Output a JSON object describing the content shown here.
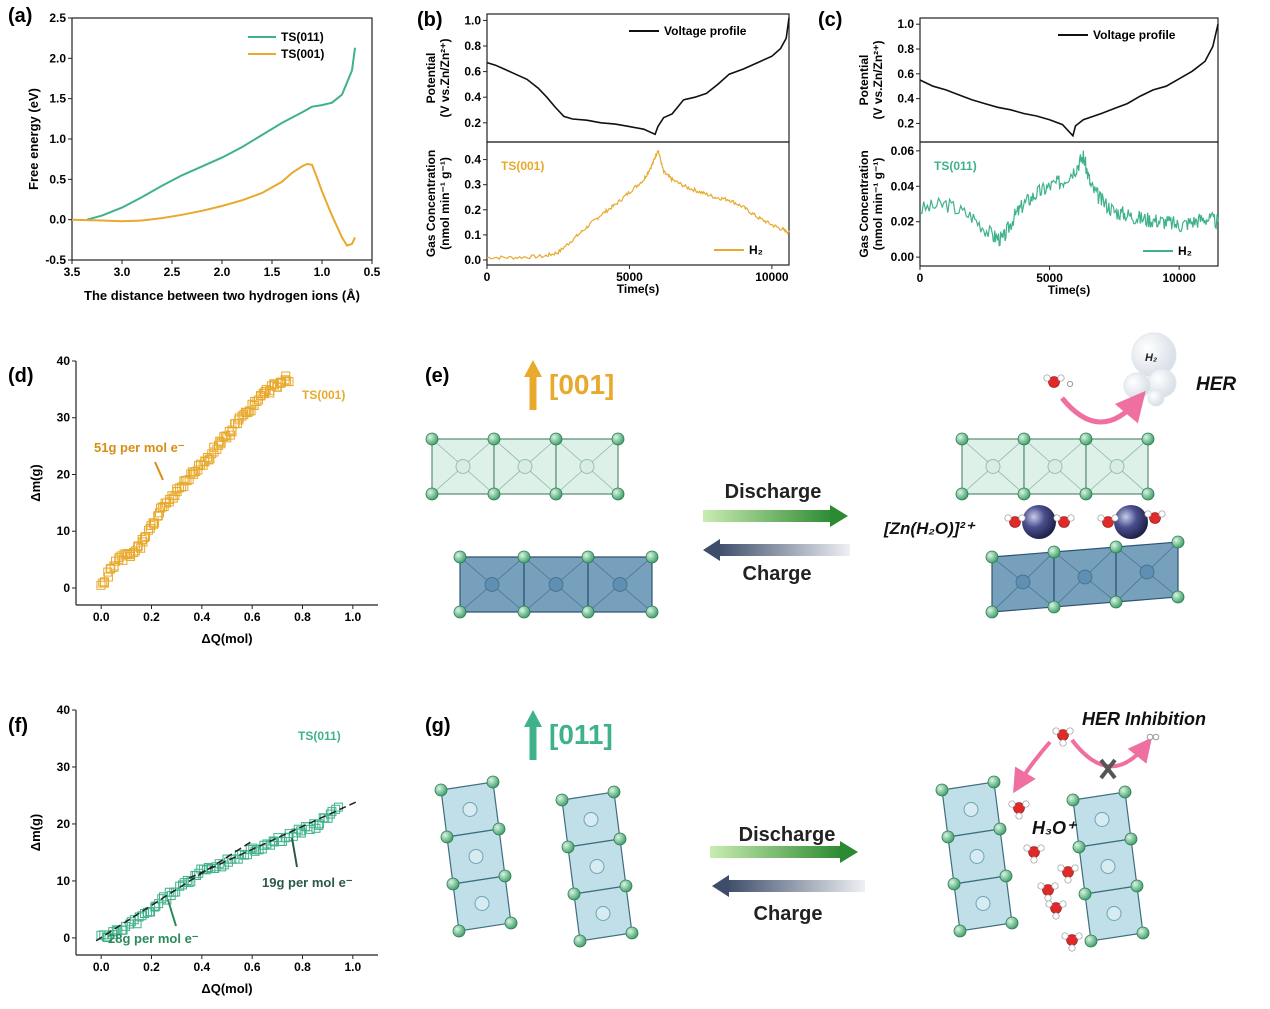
{
  "colors": {
    "green": "#3fb28a",
    "orange": "#e8a92c",
    "black": "#111111",
    "blue": "#4a7fa3",
    "lightblue": "#b9dbe6",
    "pink": "#ee6fa0"
  },
  "panels": {
    "a": {
      "label": "(a)"
    },
    "b": {
      "label": "(b)"
    },
    "c": {
      "label": "(c)"
    },
    "d": {
      "label": "(d)"
    },
    "e": {
      "label": "(e)"
    },
    "f": {
      "label": "(f)"
    },
    "g": {
      "label": "(g)"
    }
  },
  "chart_data": [
    {
      "id": "a",
      "type": "line",
      "xlabel": "The distance between two hydrogen ions (Å)",
      "ylabel": "Free energy (eV)",
      "xlim": [
        3.5,
        0.5
      ],
      "ylim": [
        -0.5,
        2.5
      ],
      "xticks": [
        "3.5",
        "3.0",
        "2.5",
        "2.0",
        "1.5",
        "1.0",
        "0.5"
      ],
      "yticks": [
        "-0.5",
        "0.0",
        "0.5",
        "1.0",
        "1.5",
        "2.0",
        "2.5"
      ],
      "legend": [
        "TS(011)",
        "TS(001)"
      ],
      "series": [
        {
          "name": "TS(011)",
          "color": "green",
          "x": [
            3.35,
            3.2,
            3.0,
            2.8,
            2.6,
            2.4,
            2.2,
            2.0,
            1.8,
            1.6,
            1.4,
            1.2,
            1.1,
            1.0,
            0.9,
            0.8,
            0.7,
            0.67
          ],
          "y": [
            0.0,
            0.05,
            0.15,
            0.28,
            0.42,
            0.55,
            0.66,
            0.77,
            0.9,
            1.05,
            1.2,
            1.33,
            1.4,
            1.42,
            1.45,
            1.55,
            1.85,
            2.13
          ]
        },
        {
          "name": "TS(001)",
          "color": "orange",
          "x": [
            3.5,
            3.2,
            3.0,
            2.8,
            2.6,
            2.4,
            2.2,
            2.0,
            1.8,
            1.6,
            1.4,
            1.3,
            1.2,
            1.15,
            1.1,
            1.05,
            1.0,
            0.9,
            0.8,
            0.75,
            0.7,
            0.67
          ],
          "y": [
            0.0,
            -0.01,
            -0.02,
            -0.01,
            0.02,
            0.06,
            0.11,
            0.17,
            0.24,
            0.33,
            0.47,
            0.58,
            0.66,
            0.69,
            0.68,
            0.52,
            0.35,
            0.05,
            -0.22,
            -0.32,
            -0.3,
            -0.22
          ]
        }
      ]
    },
    {
      "id": "b",
      "type": "line",
      "xlabel": "Time(s)",
      "xlim": [
        0,
        10600
      ],
      "xticks": [
        "0",
        "5000",
        "10000"
      ],
      "top": {
        "ylabel_lines": [
          "Potential",
          "(V vs.Zn/Zn²⁺)"
        ],
        "ylim": [
          0.05,
          1.05
        ],
        "yticks": [
          "0.2",
          "0.4",
          "0.6",
          "0.8",
          "1.0"
        ],
        "legend": "Voltage profile",
        "x": [
          0,
          300,
          600,
          1000,
          1400,
          1800,
          2100,
          2400,
          2700,
          3000,
          3500,
          4000,
          4500,
          5000,
          5500,
          5900,
          6000,
          6200,
          6500,
          6900,
          7300,
          7700,
          8100,
          8500,
          9000,
          9500,
          10000,
          10300,
          10500,
          10600
        ],
        "y": [
          0.67,
          0.65,
          0.62,
          0.58,
          0.54,
          0.47,
          0.4,
          0.32,
          0.25,
          0.23,
          0.22,
          0.2,
          0.19,
          0.17,
          0.15,
          0.11,
          0.17,
          0.24,
          0.27,
          0.38,
          0.4,
          0.43,
          0.5,
          0.58,
          0.62,
          0.67,
          0.72,
          0.78,
          0.86,
          1.02
        ]
      },
      "bottom": {
        "ylabel_lines": [
          "Gas Concentration",
          "(nmol min⁻¹ g⁻¹)"
        ],
        "ylim": [
          -0.02,
          0.47
        ],
        "yticks": [
          "0.0",
          "0.1",
          "0.2",
          "0.3",
          "0.4"
        ],
        "series_label": "TS(001)",
        "legend": "H₂",
        "x": [
          0,
          1000,
          2000,
          2500,
          3000,
          3500,
          4000,
          4500,
          5000,
          5500,
          5800,
          6000,
          6200,
          6500,
          7000,
          7500,
          8000,
          8500,
          9000,
          9500,
          10000,
          10400,
          10600
        ],
        "y": [
          0.01,
          0.01,
          0.015,
          0.03,
          0.08,
          0.13,
          0.18,
          0.22,
          0.27,
          0.32,
          0.38,
          0.44,
          0.35,
          0.32,
          0.29,
          0.27,
          0.25,
          0.24,
          0.21,
          0.17,
          0.14,
          0.12,
          0.11
        ]
      }
    },
    {
      "id": "c",
      "type": "line",
      "xlabel": "Time(s)",
      "xlim": [
        0,
        11500
      ],
      "xticks": [
        "0",
        "5000",
        "10000"
      ],
      "top": {
        "ylabel_lines": [
          "Potential",
          "(V vs.Zn/Zn²⁺)"
        ],
        "ylim": [
          0.05,
          1.05
        ],
        "yticks": [
          "0.2",
          "0.4",
          "0.6",
          "0.8",
          "1.0"
        ],
        "legend": "Voltage profile",
        "x": [
          0,
          500,
          1000,
          1500,
          2000,
          2500,
          3000,
          3500,
          4000,
          4500,
          5000,
          5500,
          5900,
          6000,
          6300,
          7000,
          7500,
          8000,
          8500,
          9000,
          9500,
          10000,
          10500,
          11000,
          11300,
          11500
        ],
        "y": [
          0.55,
          0.5,
          0.47,
          0.43,
          0.39,
          0.36,
          0.33,
          0.31,
          0.28,
          0.26,
          0.23,
          0.19,
          0.1,
          0.18,
          0.23,
          0.28,
          0.32,
          0.36,
          0.42,
          0.47,
          0.5,
          0.56,
          0.62,
          0.7,
          0.82,
          1.0
        ]
      },
      "bottom": {
        "ylabel_lines": [
          "Gas Concentration",
          "(nmol min⁻¹ g⁻¹)"
        ],
        "ylim": [
          -0.005,
          0.065
        ],
        "yticks": [
          "0.00",
          "0.02",
          "0.04",
          "0.06"
        ],
        "series_label": "TS(011)",
        "legend": "H₂",
        "x": [
          0,
          1000,
          2000,
          2800,
          3200,
          3600,
          4000,
          4500,
          5000,
          5500,
          6000,
          6300,
          6600,
          7000,
          7500,
          8000,
          8500,
          9000,
          9500,
          10000,
          10500,
          11000,
          11500
        ],
        "y": [
          0.027,
          0.03,
          0.023,
          0.012,
          0.01,
          0.022,
          0.03,
          0.036,
          0.04,
          0.043,
          0.05,
          0.057,
          0.04,
          0.032,
          0.026,
          0.024,
          0.022,
          0.021,
          0.02,
          0.018,
          0.02,
          0.022,
          0.02
        ]
      }
    },
    {
      "id": "d",
      "type": "scatter",
      "xlabel": "ΔQ(mol)",
      "ylabel": "Δm(g)",
      "xlim": [
        -0.1,
        1.1
      ],
      "ylim": [
        -3,
        40
      ],
      "xticks": [
        "0.0",
        "0.2",
        "0.4",
        "0.6",
        "0.8",
        "1.0"
      ],
      "yticks": [
        "0",
        "10",
        "20",
        "30",
        "40"
      ],
      "series_label": "TS(001)",
      "annotation": "51g per mol e⁻",
      "x": [
        0.0,
        0.03,
        0.06,
        0.09,
        0.12,
        0.15,
        0.18,
        0.21,
        0.24,
        0.27,
        0.3,
        0.33,
        0.36,
        0.39,
        0.42,
        0.45,
        0.48,
        0.51,
        0.54,
        0.57,
        0.6,
        0.63,
        0.66,
        0.69,
        0.72,
        0.75
      ],
      "y": [
        0.0,
        2.5,
        4.5,
        5.5,
        6.0,
        7.0,
        9.5,
        11.5,
        13.5,
        15.5,
        17.0,
        18.5,
        20.0,
        21.5,
        22.5,
        24.5,
        26.0,
        27.5,
        29.0,
        30.5,
        32.0,
        33.5,
        34.5,
        35.5,
        36.5,
        37.0
      ]
    },
    {
      "id": "f",
      "type": "scatter",
      "xlabel": "ΔQ(mol)",
      "ylabel": "Δm(g)",
      "xlim": [
        -0.1,
        1.1
      ],
      "ylim": [
        -3,
        40
      ],
      "xticks": [
        "0.0",
        "0.2",
        "0.4",
        "0.6",
        "0.8",
        "1.0"
      ],
      "yticks": [
        "0",
        "10",
        "20",
        "30",
        "40"
      ],
      "series_label": "TS(011)",
      "annotations": [
        "28g per mol e⁻",
        "19g per mol e⁻"
      ],
      "x": [
        0.0,
        0.05,
        0.1,
        0.15,
        0.2,
        0.25,
        0.3,
        0.35,
        0.4,
        0.45,
        0.5,
        0.55,
        0.6,
        0.65,
        0.7,
        0.75,
        0.8,
        0.85,
        0.9,
        0.95
      ],
      "y": [
        0.0,
        0.8,
        1.8,
        3.2,
        5.0,
        6.8,
        8.5,
        10.0,
        11.5,
        12.5,
        13.4,
        14.3,
        15.3,
        16.2,
        17.1,
        18.0,
        19.0,
        19.8,
        21.0,
        23.0
      ]
    }
  ],
  "schematic_e": {
    "direction_label": "[001]",
    "discharge": "Discharge",
    "charge": "Charge",
    "zn_label": "[Zn(H₂O)]²⁺",
    "her": "HER",
    "h2": "H₂"
  },
  "schematic_g": {
    "direction_label": "[011]",
    "discharge": "Discharge",
    "charge": "Charge",
    "her_inhibition": "HER Inhibition",
    "h3o": "H₃O⁺"
  }
}
